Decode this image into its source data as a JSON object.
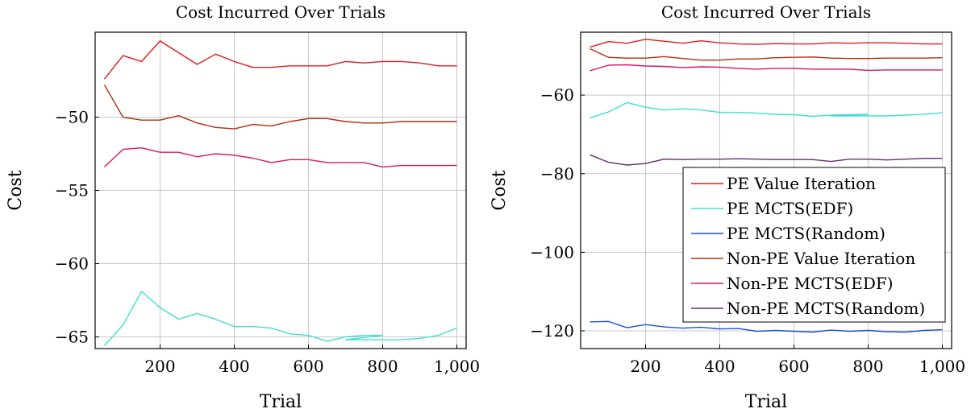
{
  "chart_data": [
    {
      "type": "line",
      "title": "Cost Incurred Over Trials",
      "xlabel": "Trial",
      "ylabel": "Cost",
      "xlim": [
        25,
        1025
      ],
      "ylim": [
        -65.8,
        -44.2
      ],
      "xticks": [
        200,
        400,
        600,
        800,
        1000
      ],
      "xtick_labels": [
        "200",
        "400",
        "600",
        "800",
        "1,000"
      ],
      "yticks": [
        -50,
        -55,
        -60,
        -65
      ],
      "ytick_labels": [
        "−50",
        "−55",
        "−60",
        "−65"
      ],
      "grid": true,
      "series": [
        {
          "name": "PE Value Iteration",
          "color": "#e41a1c",
          "x": [
            50,
            100,
            150,
            200,
            250,
            300,
            350,
            400,
            450,
            500,
            550,
            600,
            650,
            700,
            750,
            800,
            850,
            900,
            950,
            1000
          ],
          "y": [
            -47.4,
            -45.8,
            -46.2,
            -44.8,
            -45.6,
            -46.4,
            -45.7,
            -46.2,
            -46.6,
            -46.6,
            -46.5,
            -46.5,
            -46.5,
            -46.2,
            -46.3,
            -46.2,
            -46.2,
            -46.3,
            -46.5,
            -46.5
          ]
        },
        {
          "name": "PE MCTS(EDF)",
          "color": "#40e0d0",
          "x": [
            50,
            100,
            150,
            200,
            250,
            300,
            350,
            400,
            450,
            500,
            550,
            600,
            650,
            700,
            750,
            800,
            700,
            750,
            800,
            850,
            900,
            950,
            1000
          ],
          "y": [
            -65.6,
            -64.2,
            -61.9,
            -63.0,
            -63.8,
            -63.4,
            -63.8,
            -64.3,
            -64.3,
            -64.4,
            -64.8,
            -64.9,
            -65.3,
            -65.0,
            -64.9,
            -64.9,
            -65.2,
            -65.2,
            -65.2,
            -65.2,
            -65.1,
            -64.9,
            -64.4
          ]
        },
        {
          "name": "Non-PE Value Iteration",
          "color": "#b22e10",
          "x": [
            50,
            100,
            150,
            200,
            250,
            300,
            350,
            400,
            450,
            500,
            550,
            600,
            650,
            700,
            750,
            800,
            850,
            900,
            950,
            1000
          ],
          "y": [
            -47.8,
            -50.0,
            -50.2,
            -50.2,
            -49.9,
            -50.4,
            -50.7,
            -50.8,
            -50.5,
            -50.6,
            -50.3,
            -50.1,
            -50.1,
            -50.3,
            -50.4,
            -50.4,
            -50.3,
            -50.3,
            -50.3,
            -50.3
          ]
        },
        {
          "name": "Non-PE MCTS(EDF)",
          "color": "#dc1464",
          "x": [
            50,
            100,
            150,
            200,
            250,
            300,
            350,
            400,
            450,
            500,
            550,
            600,
            650,
            700,
            750,
            800,
            850,
            900,
            950,
            1000
          ],
          "y": [
            -53.4,
            -52.2,
            -52.1,
            -52.4,
            -52.4,
            -52.7,
            -52.5,
            -52.6,
            -52.8,
            -53.1,
            -52.9,
            -52.9,
            -53.1,
            -53.1,
            -53.1,
            -53.4,
            -53.3,
            -53.3,
            -53.3,
            -53.3
          ]
        }
      ]
    },
    {
      "type": "line",
      "title": "Cost Incurred Over Trials",
      "xlabel": "Trial",
      "ylabel": "Cost",
      "xlim": [
        25,
        1025
      ],
      "ylim": [
        -124.5,
        -44
      ],
      "xticks": [
        200,
        400,
        600,
        800,
        1000
      ],
      "xtick_labels": [
        "200",
        "400",
        "600",
        "800",
        "1,000"
      ],
      "yticks": [
        -60,
        -80,
        -100,
        -120
      ],
      "ytick_labels": [
        "−60",
        "−80",
        "−100",
        "−120"
      ],
      "grid": true,
      "legend_position": "center-right",
      "series": [
        {
          "name": "PE Value Iteration",
          "color": "#e41a1c",
          "x": [
            50,
            100,
            150,
            200,
            250,
            300,
            350,
            400,
            450,
            500,
            550,
            600,
            650,
            700,
            750,
            800,
            850,
            900,
            950,
            1000
          ],
          "y": [
            -47.8,
            -46.4,
            -46.8,
            -45.8,
            -46.3,
            -46.8,
            -46.2,
            -46.7,
            -47.0,
            -47.1,
            -46.9,
            -47.0,
            -47.0,
            -46.7,
            -46.8,
            -46.7,
            -46.7,
            -46.8,
            -47.0,
            -47.0
          ]
        },
        {
          "name": "PE MCTS(EDF)",
          "color": "#40e0d0",
          "x": [
            50,
            100,
            150,
            200,
            250,
            300,
            350,
            400,
            450,
            500,
            550,
            600,
            650,
            700,
            750,
            800,
            700,
            750,
            800,
            850,
            900,
            950,
            1000
          ],
          "y": [
            -65.8,
            -64.3,
            -61.9,
            -63.1,
            -63.8,
            -63.5,
            -63.8,
            -64.4,
            -64.4,
            -64.6,
            -64.9,
            -65.0,
            -65.4,
            -65.1,
            -65.0,
            -64.9,
            -65.3,
            -65.3,
            -65.3,
            -65.3,
            -65.1,
            -64.9,
            -64.5
          ]
        },
        {
          "name": "PE MCTS(Random)",
          "color": "#1f4fd8",
          "x": [
            50,
            100,
            150,
            200,
            250,
            300,
            350,
            400,
            450,
            500,
            550,
            600,
            650,
            700,
            750,
            800,
            850,
            900,
            950,
            1000
          ],
          "y": [
            -117.7,
            -117.6,
            -119.2,
            -118.4,
            -119.0,
            -119.3,
            -119.1,
            -119.5,
            -119.4,
            -120.1,
            -119.9,
            -120.1,
            -120.3,
            -119.8,
            -120.1,
            -119.9,
            -120.2,
            -120.3,
            -119.9,
            -119.7
          ]
        },
        {
          "name": "Non-PE Value Iteration",
          "color": "#b22e10",
          "x": [
            50,
            100,
            150,
            200,
            250,
            300,
            350,
            400,
            450,
            500,
            550,
            600,
            650,
            700,
            750,
            800,
            850,
            900,
            950,
            1000
          ],
          "y": [
            -48.2,
            -50.4,
            -50.6,
            -50.6,
            -50.2,
            -50.7,
            -51.1,
            -51.1,
            -50.8,
            -50.8,
            -50.5,
            -50.4,
            -50.3,
            -50.6,
            -50.7,
            -50.7,
            -50.6,
            -50.6,
            -50.6,
            -50.5
          ]
        },
        {
          "name": "Non-PE MCTS(EDF)",
          "color": "#dc1464",
          "x": [
            50,
            100,
            150,
            200,
            250,
            300,
            350,
            400,
            450,
            500,
            550,
            600,
            650,
            700,
            750,
            800,
            850,
            900,
            950,
            1000
          ],
          "y": [
            -53.8,
            -52.4,
            -52.3,
            -52.6,
            -52.7,
            -53.0,
            -52.8,
            -52.9,
            -53.2,
            -53.4,
            -53.2,
            -53.2,
            -53.4,
            -53.4,
            -53.4,
            -53.7,
            -53.6,
            -53.6,
            -53.6,
            -53.6
          ]
        },
        {
          "name": "Non-PE MCTS(Random)",
          "color": "#6b2a72",
          "x": [
            50,
            100,
            150,
            200,
            250,
            300,
            350,
            400,
            450,
            500,
            550,
            600,
            650,
            700,
            750,
            800,
            850,
            900,
            950,
            1000
          ],
          "y": [
            -75.2,
            -77.1,
            -77.8,
            -77.4,
            -76.3,
            -76.4,
            -76.3,
            -76.3,
            -76.2,
            -76.3,
            -76.4,
            -76.4,
            -76.4,
            -76.9,
            -76.3,
            -76.3,
            -76.5,
            -76.3,
            -76.1,
            -76.1
          ]
        }
      ]
    }
  ]
}
